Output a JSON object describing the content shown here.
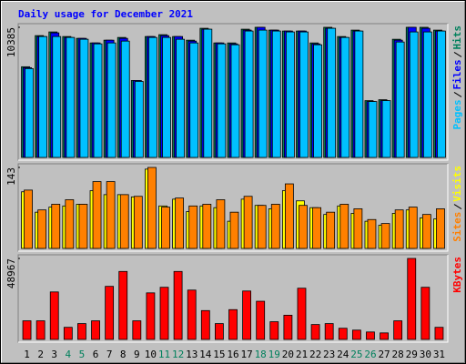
{
  "chart_data": [
    {
      "type": "bar",
      "title": "Daily usage for December 2021",
      "series": [
        {
          "name": "Hits",
          "color": "#00805c",
          "values": [
            7237,
            9722,
            10015,
            9649,
            9503,
            9138,
            9357,
            9576,
            6140,
            9649,
            9795,
            9649,
            9357,
            10307,
            9138,
            9138,
            10234,
            10385,
            10161,
            10088,
            10088,
            9138,
            10385,
            9649,
            10161,
            4532,
            4605,
            9430,
            10385,
            10385,
            10161
          ]
        },
        {
          "name": "Files",
          "color": "#0000ff",
          "values": [
            7164,
            9649,
            9942,
            9576,
            9503,
            9138,
            9357,
            9503,
            6140,
            9649,
            9722,
            9649,
            9284,
            10234,
            9138,
            9064,
            10161,
            10385,
            10161,
            10088,
            10088,
            9064,
            10307,
            9576,
            10088,
            4459,
            4532,
            9357,
            10385,
            10307,
            10088
          ]
        },
        {
          "name": "Pages",
          "color": "#00c0ff",
          "values": [
            7091,
            9649,
            9649,
            9576,
            9430,
            9064,
            9138,
            9284,
            6067,
            9576,
            9576,
            9430,
            9138,
            10234,
            9064,
            8991,
            10088,
            10161,
            10088,
            10015,
            10015,
            8991,
            10307,
            9576,
            10088,
            4459,
            4532,
            9211,
            10015,
            10015,
            10088
          ]
        }
      ],
      "ylim": [
        0,
        10385
      ],
      "yticks": [
        10385
      ]
    },
    {
      "type": "bar",
      "series": [
        {
          "name": "Visits",
          "color": "#ffff00",
          "values": [
            100,
            64,
            73,
            75,
            78,
            102,
            95,
            95,
            91,
            140,
            75,
            87,
            65,
            75,
            72,
            48,
            87,
            76,
            70,
            102,
            84,
            72,
            60,
            75,
            62,
            48,
            41,
            62,
            68,
            54,
            52
          ]
        },
        {
          "name": "Sites",
          "color": "#ff8000",
          "values": [
            103,
            68,
            78,
            86,
            78,
            118,
            118,
            95,
            92,
            143,
            73,
            89,
            75,
            78,
            86,
            64,
            92,
            76,
            78,
            114,
            76,
            72,
            64,
            78,
            70,
            51,
            44,
            68,
            73,
            60,
            70
          ]
        }
      ],
      "ylim": [
        0,
        143
      ],
      "yticks": [
        143
      ]
    },
    {
      "type": "bar",
      "series": [
        {
          "name": "KBytes",
          "color": "#ff0000",
          "values": [
            11260,
            11260,
            28710,
            7320,
            9570,
            11260,
            32090,
            41100,
            11260,
            28150,
            31530,
            41100,
            29840,
            17450,
            9570,
            18020,
            29280,
            23080,
            10700,
            14640,
            30970,
            9010,
            9570,
            6760,
            5630,
            4500,
            3940,
            11260,
            48967,
            31530,
            7320
          ]
        }
      ],
      "ylim": [
        0,
        48967
      ],
      "yticks": [
        48967
      ],
      "categories": [
        "1",
        "2",
        "3",
        "4",
        "5",
        "6",
        "7",
        "8",
        "9",
        "10",
        "11",
        "12",
        "13",
        "14",
        "15",
        "16",
        "17",
        "18",
        "19",
        "20",
        "21",
        "22",
        "23",
        "24",
        "25",
        "26",
        "27",
        "28",
        "29",
        "30",
        "31"
      ],
      "category_colors": [
        "#000000",
        "#000000",
        "#000000",
        "#00805c",
        "#00805c",
        "#000000",
        "#000000",
        "#000000",
        "#000000",
        "#000000",
        "#00805c",
        "#00805c",
        "#000000",
        "#000000",
        "#000000",
        "#000000",
        "#000000",
        "#00805c",
        "#00805c",
        "#000000",
        "#000000",
        "#000000",
        "#000000",
        "#000000",
        "#00805c",
        "#00805c",
        "#000000",
        "#000000",
        "#000000",
        "#000000",
        "#000000"
      ]
    }
  ]
}
